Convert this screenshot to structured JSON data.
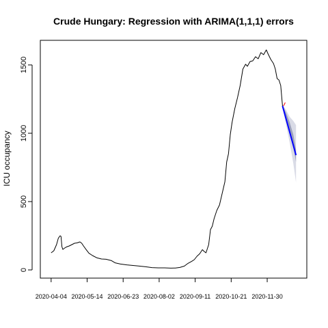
{
  "chart_data": {
    "type": "line",
    "title": "Crude Hungary: Regression with ARIMA(1,1,1) errors",
    "xlabel": "",
    "ylabel": "ICU occupancy",
    "x_ticks": [
      "2020-04-04",
      "2020-05-14",
      "2020-06-23",
      "2020-08-02",
      "2020-09-11",
      "2020-10-21",
      "2020-11-30"
    ],
    "y_ticks": [
      0,
      500,
      1000,
      1500
    ],
    "xlim": [
      "2020-03-23",
      "2021-01-13"
    ],
    "ylim": [
      -60,
      1680
    ],
    "grid": false,
    "legend": "none",
    "series": [
      {
        "role": "observed",
        "color": "#000000",
        "x": [
          "2020-04-04",
          "2020-04-07",
          "2020-04-10",
          "2020-04-12",
          "2020-04-14",
          "2020-04-15",
          "2020-04-16",
          "2020-04-17",
          "2020-04-19",
          "2020-04-21",
          "2020-04-24",
          "2020-04-27",
          "2020-04-30",
          "2020-05-03",
          "2020-05-06",
          "2020-05-08",
          "2020-05-10",
          "2020-05-13",
          "2020-05-16",
          "2020-05-20",
          "2020-05-25",
          "2020-05-30",
          "2020-06-04",
          "2020-06-10",
          "2020-06-14",
          "2020-06-20",
          "2020-06-27",
          "2020-07-03",
          "2020-07-10",
          "2020-07-18",
          "2020-07-25",
          "2020-08-01",
          "2020-08-08",
          "2020-08-15",
          "2020-08-20",
          "2020-08-25",
          "2020-08-30",
          "2020-09-03",
          "2020-09-07",
          "2020-09-10",
          "2020-09-13",
          "2020-09-16",
          "2020-09-19",
          "2020-09-21",
          "2020-09-23",
          "2020-09-26",
          "2020-09-28",
          "2020-09-30",
          "2020-10-02",
          "2020-10-05",
          "2020-10-08",
          "2020-10-11",
          "2020-10-14",
          "2020-10-16",
          "2020-10-18",
          "2020-10-20",
          "2020-10-22",
          "2020-10-25",
          "2020-10-28",
          "2020-10-31",
          "2020-11-03",
          "2020-11-06",
          "2020-11-08",
          "2020-11-11",
          "2020-11-14",
          "2020-11-17",
          "2020-11-20",
          "2020-11-23",
          "2020-11-26",
          "2020-11-29",
          "2020-12-01",
          "2020-12-04",
          "2020-12-07",
          "2020-12-09",
          "2020-12-11",
          "2020-12-13",
          "2020-12-15",
          "2020-12-17"
        ],
        "y": [
          125,
          140,
          185,
          232,
          250,
          245,
          170,
          150,
          160,
          168,
          175,
          185,
          195,
          198,
          205,
          195,
          175,
          148,
          122,
          105,
          88,
          80,
          78,
          68,
          52,
          43,
          37,
          33,
          29,
          23,
          17,
          15,
          15,
          13,
          14,
          18,
          28,
          48,
          62,
          75,
          100,
          118,
          148,
          135,
          125,
          185,
          295,
          320,
          375,
          435,
          475,
          560,
          645,
          790,
          850,
          990,
          1080,
          1180,
          1260,
          1350,
          1470,
          1505,
          1490,
          1525,
          1530,
          1560,
          1545,
          1590,
          1575,
          1610,
          1580,
          1540,
          1510,
          1470,
          1400,
          1390,
          1350,
          1200
        ]
      },
      {
        "role": "forecast",
        "color": "#0000ff",
        "x": [
          "2020-12-17",
          "2021-01-01"
        ],
        "y": [
          1200,
          840
        ]
      },
      {
        "role": "fitted",
        "color": "#ff0000",
        "x": [
          "2020-12-18",
          "2020-12-19",
          "2020-12-20"
        ],
        "y": [
          1200,
          1210,
          1225
        ]
      }
    ],
    "forecast_interval_80": {
      "color": "#9aa0bc",
      "x": [
        "2020-12-17",
        "2020-12-21",
        "2020-12-25",
        "2020-12-29",
        "2021-01-01"
      ],
      "lower": [
        1195,
        1100,
        1000,
        900,
        790
      ],
      "upper": [
        1205,
        1150,
        1080,
        990,
        880
      ]
    },
    "forecast_interval_95": {
      "color": "#d9dbe6",
      "x": [
        "2020-12-17",
        "2020-12-21",
        "2020-12-25",
        "2020-12-29",
        "2021-01-01"
      ],
      "lower": [
        1190,
        1060,
        930,
        780,
        640
      ],
      "upper": [
        1210,
        1170,
        1120,
        1090,
        1060
      ]
    }
  }
}
